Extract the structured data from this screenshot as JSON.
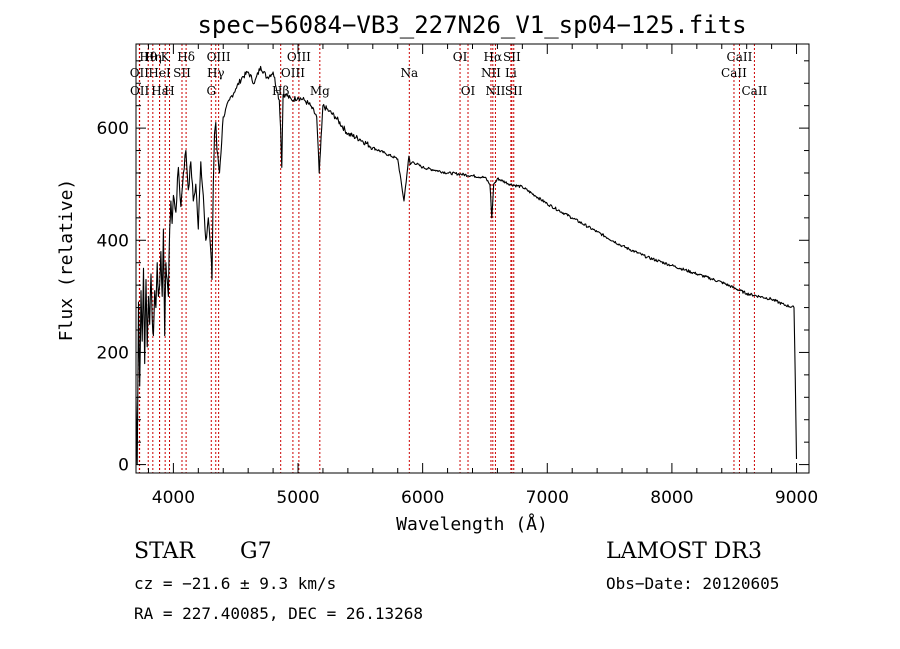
{
  "chart_data": {
    "type": "line",
    "title": "spec−56084−VB3_227N26_V1_sp04−125.fits",
    "xlabel": "Wavelength (Å)",
    "ylabel": "Flux (relative)",
    "xlim": [
      3700,
      9100
    ],
    "ylim": [
      -15,
      750
    ],
    "x_ticks": [
      4000,
      5000,
      6000,
      7000,
      8000,
      9000
    ],
    "y_ticks": [
      0,
      200,
      400,
      600
    ],
    "series": [
      {
        "name": "spectrum",
        "x": [
          3700,
          3710,
          3720,
          3730,
          3740,
          3750,
          3760,
          3770,
          3780,
          3790,
          3800,
          3810,
          3820,
          3830,
          3840,
          3850,
          3860,
          3870,
          3880,
          3890,
          3900,
          3910,
          3920,
          3930,
          3940,
          3950,
          3960,
          3970,
          3980,
          3990,
          4000,
          4020,
          4040,
          4060,
          4080,
          4100,
          4120,
          4140,
          4160,
          4180,
          4200,
          4220,
          4240,
          4260,
          4280,
          4300,
          4310,
          4320,
          4330,
          4340,
          4350,
          4370,
          4400,
          4450,
          4500,
          4550,
          4600,
          4650,
          4700,
          4750,
          4800,
          4850,
          4860,
          4870,
          4880,
          4900,
          4950,
          5000,
          5050,
          5100,
          5150,
          5170,
          5180,
          5190,
          5200,
          5250,
          5300,
          5400,
          5500,
          5600,
          5700,
          5800,
          5850,
          5880,
          5890,
          5900,
          5920,
          6000,
          6100,
          6200,
          6300,
          6400,
          6500,
          6540,
          6555,
          6563,
          6570,
          6590,
          6600,
          6700,
          6800,
          6900,
          7000,
          7200,
          7400,
          7600,
          7800,
          8000,
          8200,
          8400,
          8500,
          8600,
          8700,
          8800,
          8900,
          8980,
          8990,
          9000
        ],
        "values": [
          120,
          0,
          290,
          140,
          310,
          220,
          350,
          180,
          330,
          210,
          300,
          250,
          340,
          260,
          230,
          310,
          280,
          360,
          300,
          320,
          380,
          300,
          420,
          230,
          360,
          330,
          300,
          420,
          470,
          430,
          480,
          450,
          530,
          460,
          520,
          560,
          490,
          540,
          470,
          500,
          420,
          540,
          480,
          400,
          440,
          380,
          330,
          500,
          590,
          610,
          560,
          520,
          620,
          650,
          670,
          690,
          700,
          680,
          710,
          690,
          700,
          650,
          600,
          530,
          660,
          660,
          650,
          655,
          650,
          640,
          620,
          520,
          560,
          600,
          640,
          630,
          620,
          590,
          580,
          565,
          555,
          545,
          470,
          530,
          550,
          535,
          540,
          530,
          525,
          520,
          518,
          515,
          512,
          500,
          440,
          470,
          500,
          505,
          510,
          500,
          495,
          480,
          465,
          440,
          415,
          390,
          370,
          355,
          340,
          325,
          315,
          305,
          300,
          295,
          285,
          280,
          150,
          10
        ]
      }
    ],
    "emission_lines": [
      {
        "name": "Hθ",
        "wave": 3798,
        "row": 1
      },
      {
        "name": "OII",
        "wave": 3727,
        "row": 2
      },
      {
        "name": "OII",
        "wave": 3729,
        "row": 3
      },
      {
        "name": "Hη",
        "wave": 3835,
        "row": 1
      },
      {
        "name": "HeI",
        "wave": 3889,
        "row": 2
      },
      {
        "name": "Hε",
        "wave": 3889,
        "row": 3
      },
      {
        "name": "K",
        "wave": 3934,
        "row": 1
      },
      {
        "name": "SII",
        "wave": 4069,
        "row": 2
      },
      {
        "name": "H",
        "wave": 3969,
        "row": 3
      },
      {
        "name": "Hδ",
        "wave": 4102,
        "row": 1
      },
      {
        "name": "OIII",
        "wave": 4363,
        "row": 1
      },
      {
        "name": "Hγ",
        "wave": 4340,
        "row": 2
      },
      {
        "name": "G",
        "wave": 4304,
        "row": 3
      },
      {
        "name": "OIII",
        "wave": 5007,
        "row": 1
      },
      {
        "name": "OIII",
        "wave": 4959,
        "row": 2
      },
      {
        "name": "Hβ",
        "wave": 4861,
        "row": 3
      },
      {
        "name": "Mg",
        "wave": 5175,
        "row": 3
      },
      {
        "name": "Na",
        "wave": 5893,
        "row": 2
      },
      {
        "name": "OI",
        "wave": 6300,
        "row": 1
      },
      {
        "name": "OI",
        "wave": 6364,
        "row": 3
      },
      {
        "name": "Hα",
        "wave": 6563,
        "row": 1
      },
      {
        "name": "SII",
        "wave": 6716,
        "row": 1
      },
      {
        "name": "NII",
        "wave": 6548,
        "row": 2
      },
      {
        "name": "Li",
        "wave": 6708,
        "row": 2
      },
      {
        "name": "NII",
        "wave": 6584,
        "row": 3
      },
      {
        "name": "SII",
        "wave": 6731,
        "row": 3
      },
      {
        "name": "CaII",
        "wave": 8542,
        "row": 1
      },
      {
        "name": "CaII",
        "wave": 8498,
        "row": 2
      },
      {
        "name": "CaII",
        "wave": 8662,
        "row": 3
      }
    ]
  },
  "info": {
    "object_class": "STAR",
    "subclass": "G7",
    "survey": "LAMOST DR3",
    "cz": "cz = −21.6 ± 9.3 km/s",
    "obs_date": "Obs−Date: 20120605",
    "coords": "RA = 227.40085, DEC =  26.13268"
  },
  "colors": {
    "line_marker": "#cc0000",
    "spectrum": "#000000"
  }
}
